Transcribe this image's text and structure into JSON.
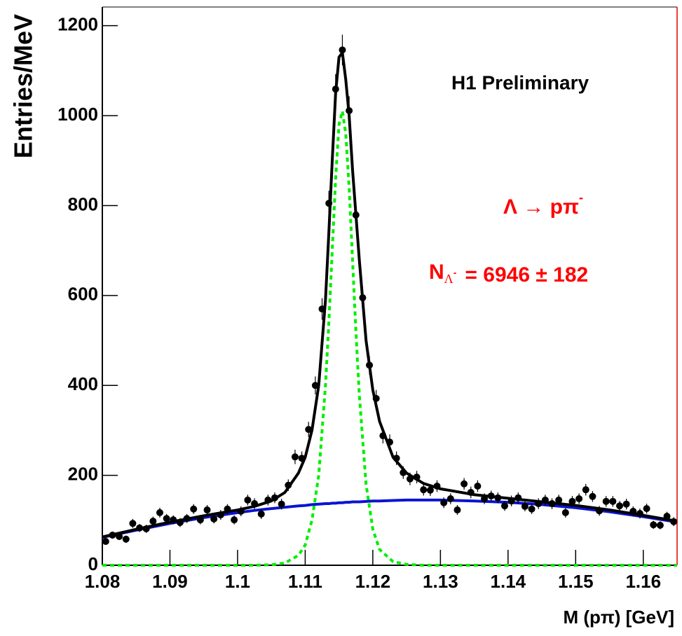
{
  "chart_data": {
    "type": "errorbar",
    "annotation": "H1 Preliminary",
    "signal_label": {
      "text": "Λ → pπ",
      "superscript": "-"
    },
    "yield_label": {
      "symbol": "N",
      "subscript": "Λ",
      "sub_superscript": "-",
      "text": "= 6946 ± 182"
    },
    "xlabel": "M (pπ) [GeV]",
    "ylabel": "Entries/MeV",
    "xlim": [
      1.08,
      1.165
    ],
    "ylim": [
      0,
      1240
    ],
    "xticks": [
      1.08,
      1.09,
      1.1,
      1.11,
      1.12,
      1.13,
      1.14,
      1.15,
      1.16
    ],
    "yticks": [
      0,
      200,
      400,
      600,
      800,
      1000,
      1200
    ],
    "color": "#000000",
    "x": [
      1.0805,
      1.0815,
      1.0825,
      1.0835,
      1.0845,
      1.0855,
      1.0865,
      1.0875,
      1.0885,
      1.0895,
      1.0905,
      1.0915,
      1.0925,
      1.0935,
      1.0945,
      1.0955,
      1.0965,
      1.0975,
      1.0985,
      1.0995,
      1.1005,
      1.1015,
      1.1025,
      1.1035,
      1.1045,
      1.1055,
      1.1065,
      1.1075,
      1.1085,
      1.1095,
      1.1105,
      1.1115,
      1.1125,
      1.1135,
      1.1145,
      1.1155,
      1.1165,
      1.1175,
      1.1185,
      1.1195,
      1.1205,
      1.1215,
      1.1225,
      1.1235,
      1.1245,
      1.1255,
      1.1265,
      1.1275,
      1.1285,
      1.1295,
      1.1305,
      1.1315,
      1.1325,
      1.1335,
      1.1345,
      1.1355,
      1.1365,
      1.1375,
      1.1385,
      1.1395,
      1.1405,
      1.1415,
      1.1425,
      1.1435,
      1.1445,
      1.1455,
      1.1465,
      1.1475,
      1.1485,
      1.1495,
      1.1505,
      1.1515,
      1.1525,
      1.1535,
      1.1545,
      1.1555,
      1.1565,
      1.1575,
      1.1585,
      1.1595,
      1.1605,
      1.1615,
      1.1625,
      1.1635,
      1.1645
    ],
    "values": [
      53,
      67,
      64,
      58,
      93,
      83,
      81,
      98,
      117,
      104,
      101,
      95,
      104,
      125,
      101,
      123,
      103,
      112,
      125,
      101,
      120,
      145,
      137,
      114,
      145,
      150,
      136,
      178,
      241,
      238,
      302,
      400,
      570,
      805,
      1059,
      1146,
      1011,
      779,
      595,
      445,
      371,
      288,
      274,
      238,
      206,
      192,
      196,
      168,
      167,
      176,
      139,
      148,
      123,
      181,
      162,
      176,
      148,
      154,
      150,
      132,
      143,
      150,
      131,
      125,
      137,
      145,
      137,
      145,
      117,
      142,
      148,
      168,
      153,
      121,
      142,
      142,
      132,
      136,
      120,
      115,
      126,
      90,
      89,
      109,
      97
    ],
    "errors": [
      7,
      8,
      8,
      8,
      10,
      9,
      9,
      10,
      11,
      10,
      10,
      10,
      10,
      11,
      10,
      11,
      10,
      11,
      11,
      10,
      11,
      12,
      12,
      11,
      12,
      12,
      12,
      13,
      16,
      15,
      17,
      20,
      24,
      28,
      33,
      34,
      32,
      28,
      24,
      21,
      19,
      17,
      17,
      15,
      14,
      14,
      14,
      13,
      13,
      13,
      12,
      12,
      11,
      13,
      13,
      13,
      12,
      12,
      12,
      11,
      12,
      12,
      11,
      11,
      12,
      12,
      12,
      12,
      11,
      12,
      12,
      13,
      12,
      11,
      12,
      12,
      11,
      12,
      11,
      11,
      11,
      9,
      9,
      10,
      10
    ],
    "fit_x": [
      1.08,
      1.085,
      1.09,
      1.095,
      1.1,
      1.1025,
      1.105,
      1.107,
      1.109,
      1.11,
      1.111,
      1.112,
      1.113,
      1.1135,
      1.114,
      1.1145,
      1.115,
      1.1155,
      1.116,
      1.1165,
      1.117,
      1.1175,
      1.118,
      1.119,
      1.12,
      1.121,
      1.123,
      1.125,
      1.1275,
      1.13,
      1.135,
      1.14,
      1.145,
      1.15,
      1.155,
      1.16,
      1.165
    ],
    "fits": [
      {
        "color": "#00ee00",
        "dashed": true,
        "values": [
          0,
          0,
          0,
          0,
          0,
          0,
          1,
          5,
          22,
          45,
          100,
          200,
          400,
          540,
          700,
          860,
          980,
          1010,
          960,
          840,
          680,
          520,
          380,
          180,
          80,
          35,
          8,
          2,
          0,
          0,
          0,
          0,
          0,
          0,
          0,
          0,
          0
        ]
      },
      {
        "color": "#0a14d2",
        "dashed": false,
        "values": [
          62,
          78,
          93,
          106,
          117,
          122,
          126,
          129,
          132,
          133,
          135,
          136,
          137,
          137,
          138,
          138,
          139,
          139,
          140,
          140,
          141,
          141,
          141,
          142,
          143,
          143,
          144,
          145,
          145,
          145,
          143,
          140,
          135,
          128,
          119,
          108,
          96
        ]
      },
      {
        "color": "#000000",
        "dashed": false,
        "values": [
          63,
          80,
          96,
          110,
          123,
          131,
          143,
          162,
          205,
          240,
          300,
          400,
          590,
          740,
          900,
          1050,
          1130,
          1140,
          1080,
          1000,
          880,
          780,
          680,
          500,
          390,
          320,
          240,
          205,
          182,
          170,
          157,
          149,
          141,
          133,
          123,
          111,
          98
        ]
      }
    ]
  }
}
